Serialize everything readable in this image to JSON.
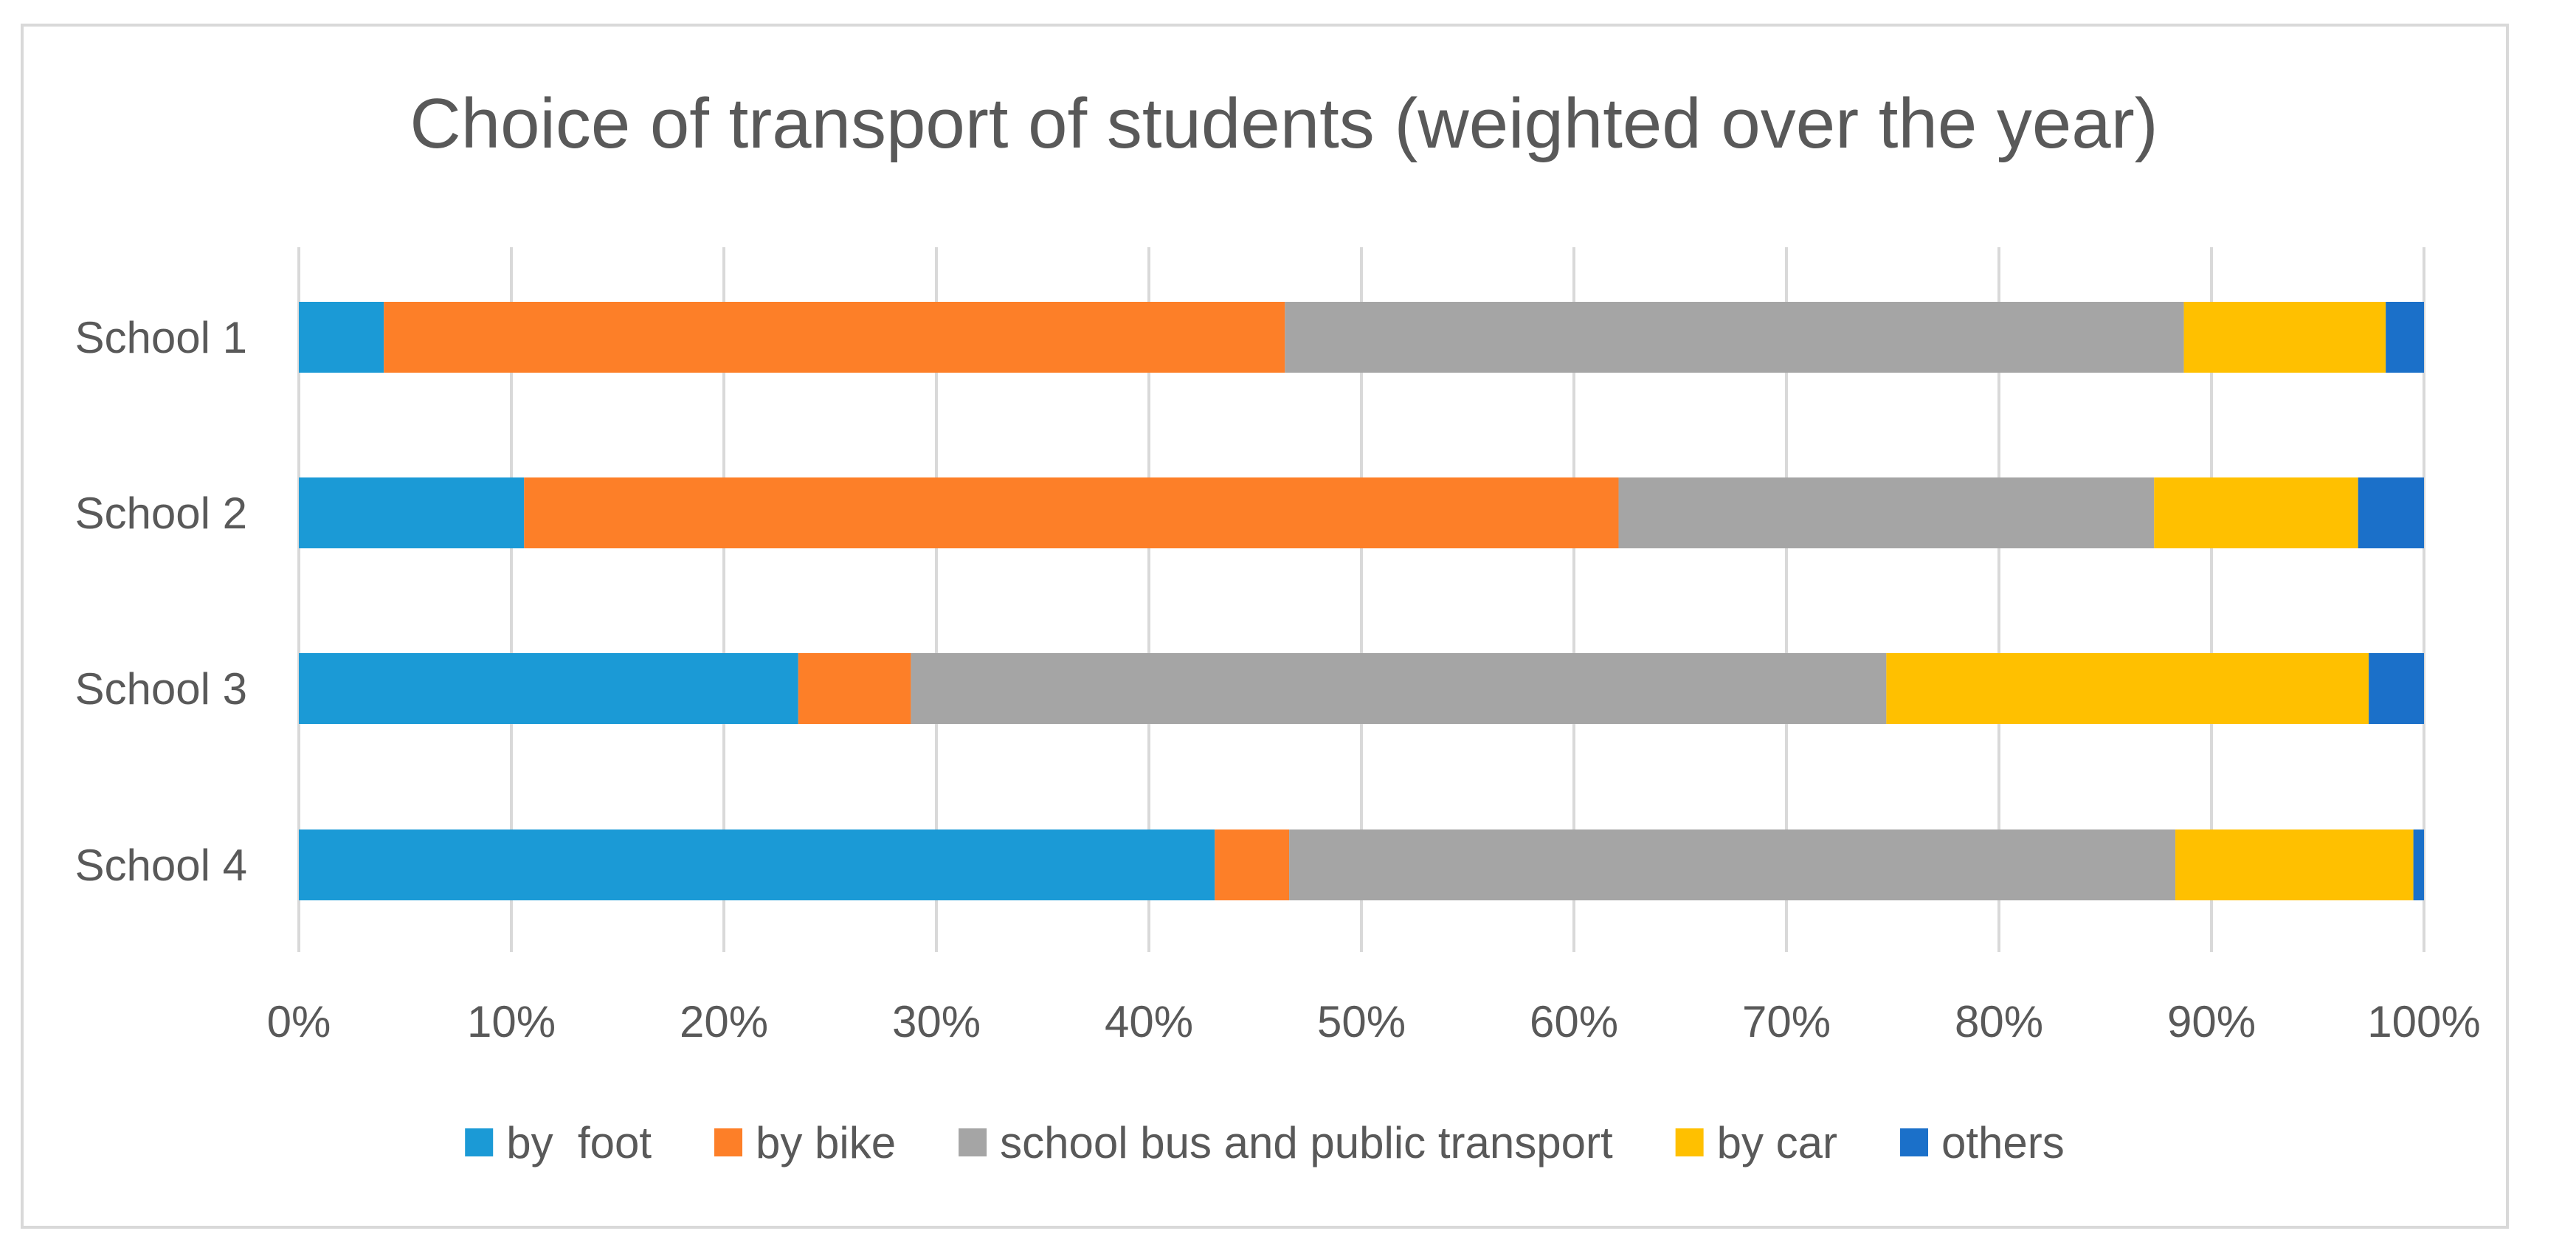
{
  "chart_data": {
    "type": "bar",
    "orientation": "horizontal",
    "stacked": "percent",
    "title": "Choice of transport of students (weighted over the year)",
    "categories": [
      "School 1",
      "School 2",
      "School 3",
      "School 4"
    ],
    "series": [
      {
        "name": "by  foot",
        "color": "#1b9ad6",
        "values": [
          4.0,
          10.6,
          23.5,
          43.1
        ]
      },
      {
        "name": "by bike",
        "color": "#fd7f28",
        "values": [
          42.4,
          51.5,
          5.3,
          3.5
        ]
      },
      {
        "name": "school bus and public transport",
        "color": "#a5a5a5",
        "values": [
          42.3,
          25.2,
          45.9,
          41.7
        ]
      },
      {
        "name": "by car",
        "color": "#ffc000",
        "values": [
          9.5,
          9.6,
          22.7,
          11.2
        ]
      },
      {
        "name": "others",
        "color": "#1b70c9",
        "values": [
          1.8,
          3.1,
          2.6,
          0.5
        ]
      }
    ],
    "xlim": [
      0,
      100
    ],
    "x_ticks": [
      "0%",
      "10%",
      "20%",
      "30%",
      "40%",
      "50%",
      "60%",
      "70%",
      "80%",
      "90%",
      "100%"
    ],
    "grid": "vertical",
    "legend_position": "bottom",
    "xlabel": "",
    "ylabel": ""
  }
}
